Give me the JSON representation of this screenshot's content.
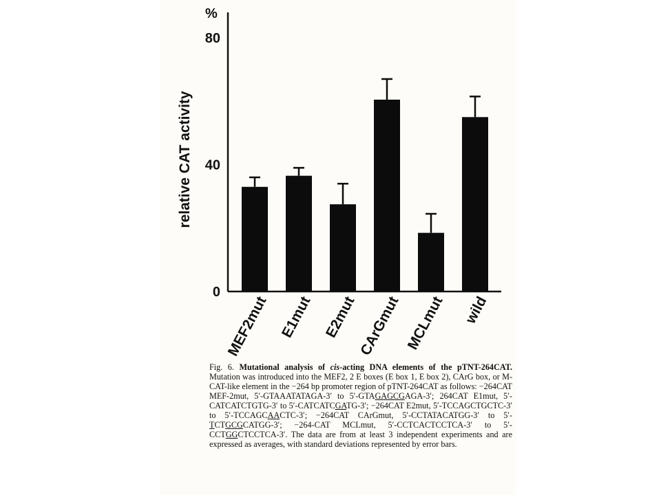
{
  "chart_data": {
    "type": "bar",
    "ylabel": "relative CAT activity",
    "yunit": "%",
    "yticks": [
      "0",
      "40",
      "80"
    ],
    "ylim": [
      0,
      80
    ],
    "categories": [
      "MEF2mut",
      "E1mut",
      "E2mut",
      "CArGmut",
      "MCLmut",
      "wild"
    ],
    "values": [
      33,
      36.5,
      27.5,
      60.5,
      18.5,
      55
    ],
    "errors": [
      3,
      2.5,
      6.5,
      6.5,
      6,
      6.5
    ],
    "grid": false,
    "legend": "none"
  },
  "caption": {
    "fig_label": "Fig. 6.",
    "title_a": "Mutational analysis of ",
    "title_italic": "cis",
    "title_b": "-acting DNA elements of the pTNT-264CAT.",
    "body_1": " Mutation was introduced into the MEF2, 2 E boxes (E box 1, E box 2), CArG box, or M-CAT-like element in the −264 bp promoter region of pTNT-264CAT as follows: −264CAT MEF-2mut, 5′-GTAAATATAGA-3′ to 5′-GTA",
    "u_1": "GAGCG",
    "body_2": "AGA-3′; 264CAT E1mut, 5′-CATCATCTGTG-3′ to 5′-CATCATC",
    "u_2": "GA",
    "body_3": "TG-3′; −264CAT E2mut, 5′-TCCAGCTGCTC-3′ to 5′-TCCAGC",
    "u_3": "AA",
    "body_4": "CTC-3′; −264CAT CArGmut, 5′-CCTATACATGG-3′ to 5′-",
    "u_4": "T",
    "body_4b": "CT",
    "u_5": "GCG",
    "body_5": "CATGG-3′; −264-CAT MCLmut, 5′-CCTCACTCCTCA-3′ to 5′-CCT",
    "u_6": "GG",
    "body_6": "CTCCTCA-3′. The data are from at least 3 independent experiments and are expressed as averages, with standard deviations represented by error bars."
  }
}
